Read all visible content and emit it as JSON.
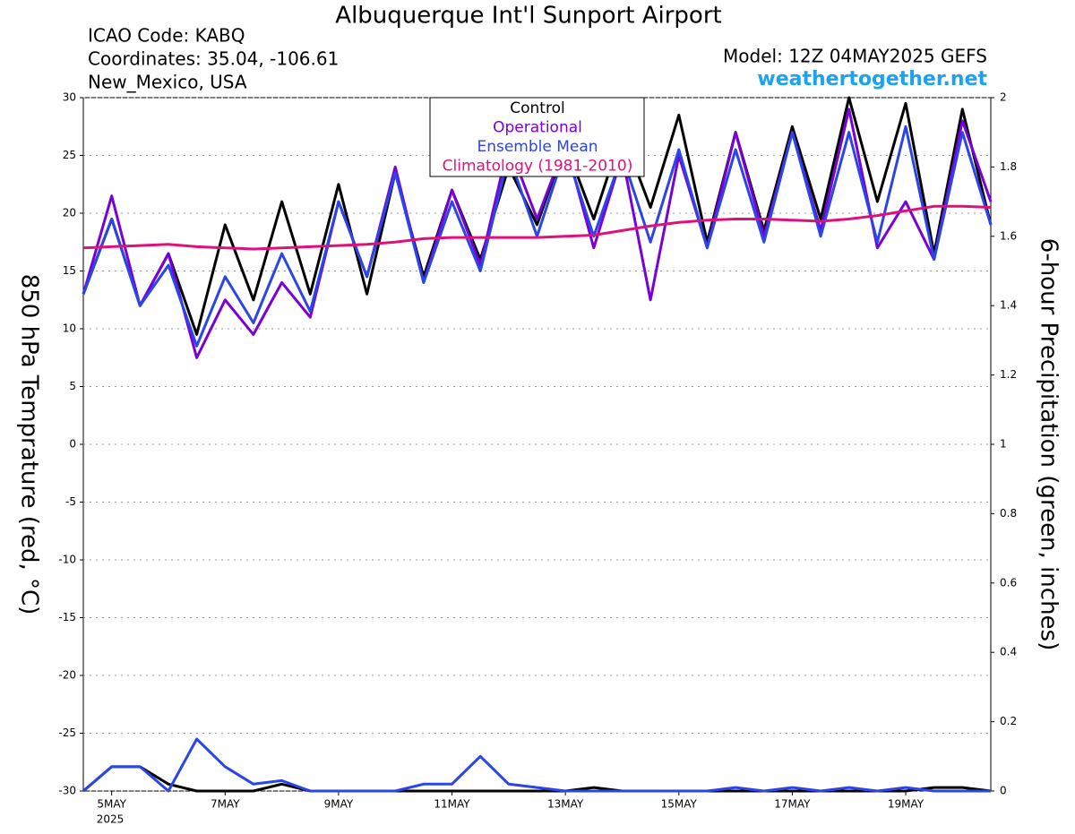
{
  "chart_data": {
    "type": "line",
    "title": "Albuquerque Int'l Sunport Airport",
    "info": [
      "ICAO Code: KABQ",
      "Coordinates: 35.04, -106.61",
      "New_Mexico, USA"
    ],
    "model": "Model: 12Z 04MAY2025 GEFS",
    "site": "weathertogether.net",
    "ylabel": "850 hPa Temprature (red, °C)",
    "y2label": "6-hour Precipitation (green, inches)",
    "year_label": "2025",
    "x": [
      0,
      12,
      24,
      36,
      48,
      60,
      72,
      84,
      96,
      108,
      120,
      132,
      144,
      156,
      168,
      180,
      192,
      204,
      216,
      228,
      240,
      252,
      264,
      276,
      288,
      300,
      312,
      324,
      336,
      348,
      360,
      372,
      384
    ],
    "xlim": [
      0,
      384
    ],
    "xticks": [
      {
        "value": 12,
        "label": "5MAY"
      },
      {
        "value": 60,
        "label": "7MAY"
      },
      {
        "value": 108,
        "label": "9MAY"
      },
      {
        "value": 156,
        "label": "11MAY"
      },
      {
        "value": 204,
        "label": "13MAY"
      },
      {
        "value": 252,
        "label": "15MAY"
      },
      {
        "value": 300,
        "label": "17MAY"
      },
      {
        "value": 348,
        "label": "19MAY"
      }
    ],
    "ylim": [
      -30,
      30
    ],
    "yticks": [
      -30,
      -25,
      -20,
      -15,
      -10,
      -5,
      0,
      5,
      10,
      15,
      20,
      25,
      30
    ],
    "y2lim": [
      0,
      2
    ],
    "y2ticks": [
      0,
      0.2,
      0.4,
      0.6,
      0.8,
      1,
      1.2,
      1.4,
      1.6,
      1.8,
      2
    ],
    "grid": true,
    "series": [
      {
        "name": "Control",
        "color": "#000000",
        "values": [
          13,
          19.5,
          12,
          16.5,
          9.5,
          19,
          12.5,
          21,
          13,
          22.5,
          13,
          23.5,
          14.5,
          22,
          16,
          24,
          19,
          26,
          19.5,
          27,
          20.5,
          28.5,
          17.5,
          27,
          18.5,
          27.5,
          19.5,
          30,
          21,
          29.5,
          16.5,
          29,
          19
        ]
      },
      {
        "name": "Operational",
        "color": "#7a00d9",
        "values": [
          13,
          21.5,
          12,
          16.5,
          7.5,
          12.5,
          9.5,
          14,
          11,
          21,
          14.5,
          24,
          14,
          22,
          15.5,
          26,
          19.5,
          26,
          17,
          25,
          12.5,
          25,
          17,
          27,
          18,
          27,
          18.5,
          29,
          17,
          21,
          16,
          28,
          21
        ]
      },
      {
        "name": "Ensemble Mean",
        "color": "#2a45e8",
        "values": [
          13,
          19.5,
          12,
          15.5,
          8.5,
          14.5,
          10.5,
          16.5,
          11.5,
          21,
          14.5,
          23.5,
          14,
          21,
          15,
          25,
          18,
          25.5,
          18,
          25,
          17.5,
          25.5,
          17,
          25.5,
          17.5,
          27,
          18,
          27,
          17.5,
          27.5,
          16,
          27,
          19
        ]
      },
      {
        "name": "Climatology (1981-2010)",
        "color": "#e0107a",
        "values": [
          17,
          17.1,
          17.2,
          17.3,
          17.1,
          17,
          16.9,
          17,
          17.1,
          17.2,
          17.3,
          17.5,
          17.8,
          17.9,
          17.9,
          17.9,
          17.9,
          18,
          18.1,
          18.5,
          18.9,
          19.2,
          19.4,
          19.5,
          19.5,
          19.4,
          19.3,
          19.5,
          19.8,
          20.2,
          20.6,
          20.6,
          20.5
        ]
      },
      {
        "color": "#000000",
        "axis": "y2",
        "values": [
          0,
          0.07,
          0.07,
          0.02,
          0,
          0,
          0,
          0.02,
          0,
          0,
          0,
          0,
          0,
          0,
          0,
          0,
          0,
          0,
          0.01,
          0,
          0,
          0,
          0,
          0,
          0,
          0,
          0,
          0,
          0,
          0,
          0.01,
          0.01,
          0
        ]
      },
      {
        "color": "#2a45e8",
        "axis": "y2",
        "values": [
          0,
          0.07,
          0.07,
          0,
          0.15,
          0.07,
          0.02,
          0.03,
          0,
          0,
          0,
          0,
          0.02,
          0.02,
          0.1,
          0.02,
          0.01,
          0,
          0,
          0,
          0,
          0,
          0,
          0.01,
          0,
          0.01,
          0,
          0.01,
          0,
          0.01,
          0,
          0,
          0
        ]
      }
    ]
  }
}
